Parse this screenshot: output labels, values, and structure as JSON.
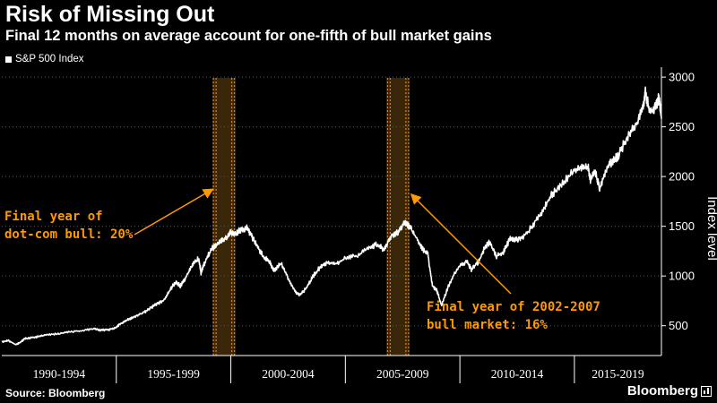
{
  "header": {
    "title": "Risk of Missing Out",
    "subtitle": "Final 12 months on average account for one-fifth of bull market gains"
  },
  "legend": {
    "label": "S&P 500 Index"
  },
  "footer": {
    "source": "Source: Bloomberg",
    "brand": "Bloomberg"
  },
  "colors": {
    "background": "#000000",
    "line": "#ffffff",
    "accent": "#ff9900",
    "band_fill": "#3a2608",
    "grid": "#555555"
  },
  "chart_data": {
    "type": "line",
    "ylabel": "Index level",
    "ylim": [
      200,
      3100
    ],
    "yticks": [
      500,
      1000,
      1500,
      2000,
      2500,
      3000
    ],
    "xlim": [
      1990.0,
      2018.8
    ],
    "categories": [
      "1990-1994",
      "1995-1999",
      "2000-2004",
      "2005-2009",
      "2010-2014",
      "2015-2019"
    ],
    "category_bounds": [
      [
        1990,
        1995
      ],
      [
        1995,
        2000
      ],
      [
        2000,
        2005
      ],
      [
        2005,
        2010
      ],
      [
        2010,
        2015
      ],
      [
        2015,
        2020
      ]
    ],
    "highlight_bands": [
      [
        1999.2,
        2000.2
      ],
      [
        2006.8,
        2007.8
      ]
    ],
    "series": [
      {
        "x": [
          1990.0,
          1990.3,
          1990.6,
          1990.8,
          1991.0,
          1991.3,
          1991.6,
          1992.0,
          1992.5,
          1993.0,
          1993.5,
          1994.0,
          1994.3,
          1994.6,
          1994.9,
          1995.2,
          1995.5,
          1995.8,
          1996.2,
          1996.5,
          1996.8,
          1997.1,
          1997.4,
          1997.6,
          1997.8,
          1998.0,
          1998.3,
          1998.6,
          1998.7,
          1998.9,
          1999.2,
          1999.5,
          1999.8,
          2000.0,
          2000.2,
          2000.4,
          2000.7,
          2000.9,
          2001.1,
          2001.4,
          2001.7,
          2001.9,
          2002.2,
          2002.5,
          2002.8,
          2003.0,
          2003.3,
          2003.6,
          2003.9,
          2004.2,
          2004.6,
          2005.0,
          2005.5,
          2006.0,
          2006.4,
          2006.7,
          2007.0,
          2007.3,
          2007.6,
          2007.8,
          2008.1,
          2008.4,
          2008.6,
          2008.8,
          2009.0,
          2009.2,
          2009.5,
          2009.9,
          2010.3,
          2010.5,
          2010.8,
          2011.1,
          2011.3,
          2011.6,
          2011.9,
          2012.2,
          2012.5,
          2012.9,
          2013.3,
          2013.7,
          2014.0,
          2014.4,
          2014.9,
          2015.3,
          2015.6,
          2015.7,
          2015.9,
          2016.1,
          2016.4,
          2016.7,
          2016.9,
          2017.3,
          2017.7,
          2018.0,
          2018.1,
          2018.3,
          2018.6,
          2018.7,
          2018.8
        ],
        "values": [
          340,
          350,
          310,
          330,
          370,
          380,
          390,
          410,
          420,
          440,
          450,
          470,
          455,
          460,
          470,
          520,
          560,
          590,
          630,
          680,
          720,
          760,
          880,
          940,
          900,
          970,
          1100,
          1180,
          1030,
          1160,
          1280,
          1340,
          1380,
          1440,
          1420,
          1460,
          1480,
          1400,
          1320,
          1200,
          1140,
          1050,
          1130,
          980,
          850,
          800,
          880,
          1000,
          1090,
          1130,
          1120,
          1180,
          1200,
          1280,
          1320,
          1260,
          1410,
          1440,
          1540,
          1500,
          1380,
          1260,
          1220,
          900,
          850,
          700,
          900,
          1080,
          1150,
          1060,
          1140,
          1290,
          1340,
          1200,
          1240,
          1380,
          1360,
          1420,
          1550,
          1690,
          1820,
          1900,
          2060,
          2090,
          2100,
          1960,
          2050,
          1880,
          2070,
          2170,
          2200,
          2390,
          2510,
          2690,
          2850,
          2640,
          2720,
          2800,
          2580
        ],
        "name": ""
      }
    ],
    "annotations": [
      {
        "text_lines": [
          "Final year of",
          "dot-com bull: 20%"
        ],
        "band": 0
      },
      {
        "text_lines": [
          "Final year of 2002-2007",
          "bull market: 16%"
        ],
        "band": 1
      }
    ]
  }
}
